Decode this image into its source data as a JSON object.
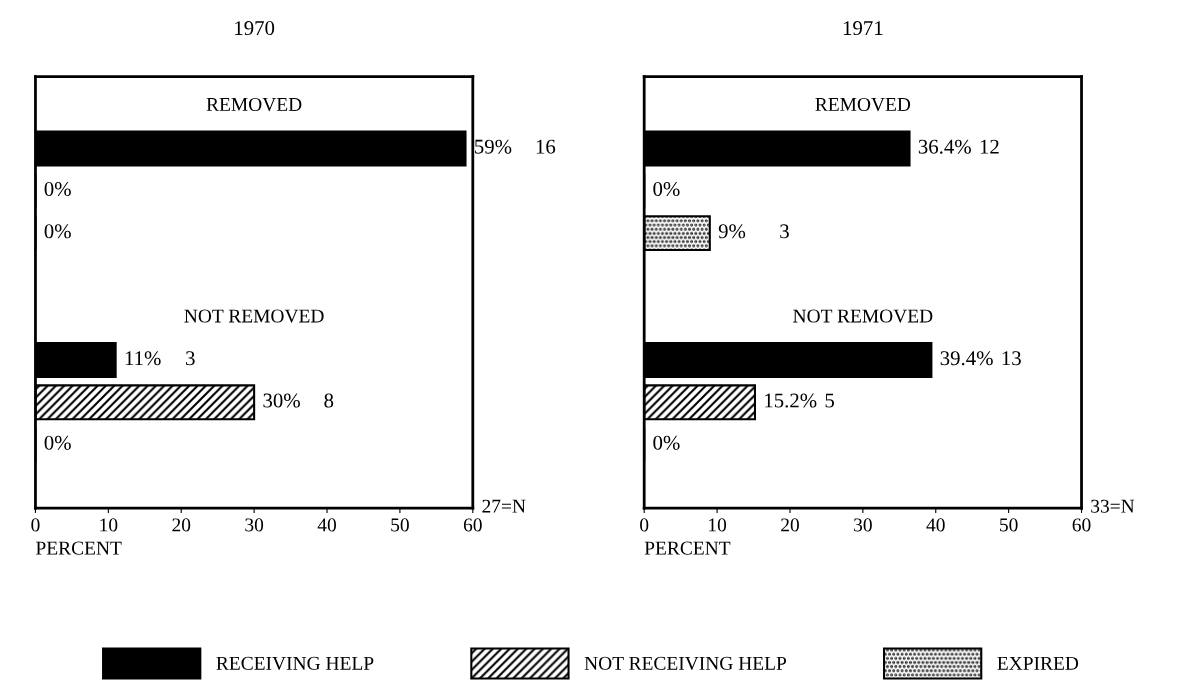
{
  "chart_data": [
    {
      "type": "bar",
      "orientation": "horizontal",
      "title": "1970",
      "xlabel": "PERCENT",
      "categories": [
        "REMOVED",
        "NOT REMOVED"
      ],
      "xlim": [
        0,
        60
      ],
      "xticks": [
        0,
        10,
        20,
        30,
        40,
        50,
        60
      ],
      "legend": "bottom",
      "series": [
        {
          "name": "RECEIVING HELP",
          "color": "#000000",
          "values": [
            59,
            11
          ],
          "value_labels": [
            "59%",
            "11%"
          ]
        },
        {
          "name": "NOT RECEIVING HELP",
          "color": "#000000",
          "values": [
            0,
            30
          ],
          "value_labels": [
            "0%",
            "30%"
          ]
        },
        {
          "name": "EXPIRED",
          "color": "#000000",
          "values": [
            0,
            0
          ],
          "value_labels": [
            "0%",
            "0%"
          ]
        }
      ],
      "annotations": [
        "16",
        "3",
        "8",
        "27=N"
      ]
    },
    {
      "type": "bar",
      "orientation": "horizontal",
      "title": "1971",
      "xlabel": "PERCENT",
      "categories": [
        "REMOVED",
        "NOT REMOVED"
      ],
      "xlim": [
        0,
        60
      ],
      "xticks": [
        0,
        10,
        20,
        30,
        40,
        50,
        60
      ],
      "series": [
        {
          "color": "#000000",
          "values": [
            36.4,
            39.4
          ],
          "value_labels": [
            "36.4%",
            "39.4%"
          ]
        },
        {
          "color": "#000000",
          "values": [
            0,
            15.2
          ],
          "value_labels": [
            "0%",
            "15.2%"
          ]
        },
        {
          "color": "#000000",
          "values": [
            9,
            0
          ],
          "value_labels": [
            "9%",
            "0%"
          ]
        }
      ],
      "annotations": [
        "12",
        "3",
        "13",
        "5",
        "33=N"
      ]
    }
  ]
}
